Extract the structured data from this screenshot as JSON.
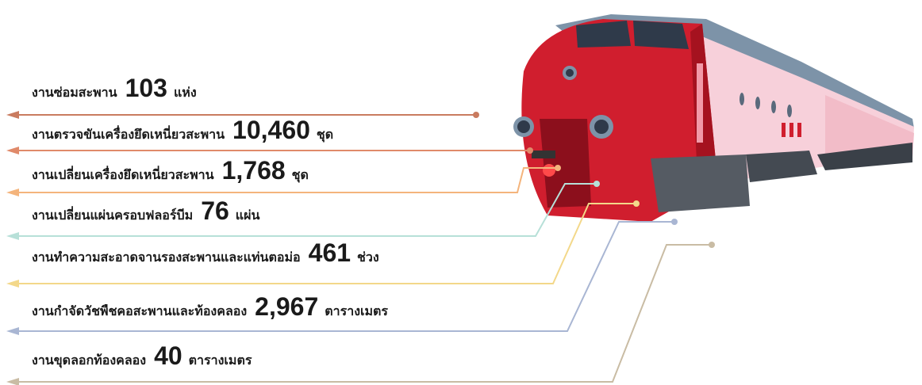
{
  "items": [
    {
      "label": "งานซ่อมสะพาน",
      "value": "103",
      "unit": "แห่ง"
    },
    {
      "label": "งานตรวจขันเครื่องยึดเหนี่ยวสะพาน",
      "value": "10,460",
      "unit": "ชุด"
    },
    {
      "label": "งานเปลี่ยนเครื่องยึดเหนี่ยวสะพาน",
      "value": "1,768",
      "unit": "ชุด"
    },
    {
      "label": "งานเปลี่ยนแผ่นครอบฟลอร์บีม",
      "value": "76",
      "unit": "แผ่น"
    },
    {
      "label": "งานทำความสะอาดจานรองสะพานและแท่นตอม่อ",
      "value": "461",
      "unit": "ช่วง"
    },
    {
      "label": "งานกำจัดวัชพืชคอสะพานและท้องคลอง",
      "value": "2,967",
      "unit": "ตารางเมตร"
    },
    {
      "label": "งานขุดลอกท้องคลอง",
      "value": "40",
      "unit": "ตารางเมตร"
    }
  ]
}
